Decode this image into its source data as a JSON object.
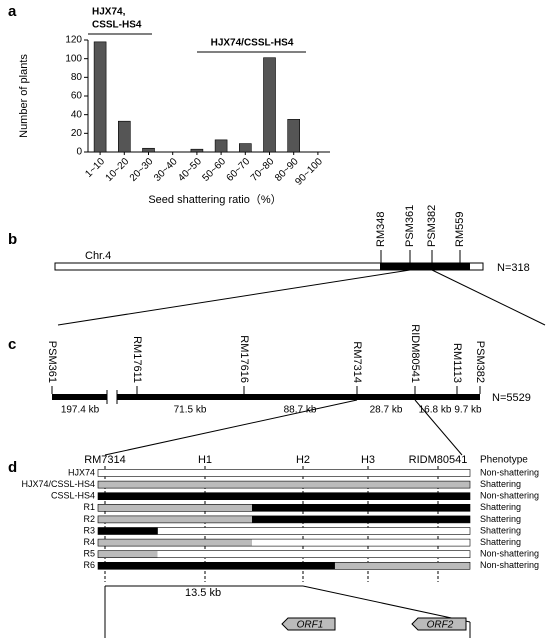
{
  "chart_data": {
    "type": "bar",
    "panel_label": "a",
    "ylabel": "Number of plants",
    "xlabel": "Seed shattering ratio（%）",
    "categories": [
      "1~10",
      "10~20",
      "20~30",
      "30~40",
      "40~50",
      "50~60",
      "60~70",
      "70~80",
      "80~90",
      "90~100"
    ],
    "values": [
      118,
      33,
      4,
      0,
      3,
      13,
      9,
      101,
      35,
      0
    ],
    "color": "#555555",
    "ylim": [
      0,
      120
    ],
    "yticks": [
      0,
      20,
      40,
      60,
      80,
      100,
      120
    ],
    "annotations": [
      "HJX74,",
      "CSSL-HS4",
      "HJX74/CSSL-HS4"
    ]
  },
  "panel_b": {
    "label": "b",
    "chromosome": "Chr.4",
    "markers": [
      "RM348",
      "PSM361",
      "PSM382",
      "RM559"
    ],
    "population": "N=318"
  },
  "panel_c": {
    "label": "c",
    "markers": [
      "PSM361",
      "RM17611",
      "RM17616",
      "RM7314",
      "RIDM80541",
      "RM1113",
      "PSM382"
    ],
    "distances": [
      "197.4 kb",
      "71.5 kb",
      "88.7 kb",
      "28.7 kb",
      "16.8 kb",
      "9.7 kb"
    ],
    "population": "N=5529"
  },
  "panel_d": {
    "label": "d",
    "markers": [
      "RM7314",
      "H1",
      "H2",
      "H3",
      "RIDM80541"
    ],
    "phenotype_header": "Phenotype",
    "rows": [
      [
        "HJX74",
        "Non-shattering"
      ],
      [
        "HJX74/CSSL-HS4",
        "Shattering"
      ],
      [
        "CSSL-HS4",
        "Non-shattering"
      ],
      [
        "R1",
        "Shattering"
      ],
      [
        "R2",
        "Shattering"
      ],
      [
        "R3",
        "Shattering"
      ],
      [
        "R4",
        "Shattering"
      ],
      [
        "R5",
        "Non-shattering"
      ],
      [
        "R6",
        "Non-shattering"
      ]
    ],
    "scale": "13.5 kb",
    "genes": [
      "ORF1",
      "ORF2"
    ]
  }
}
